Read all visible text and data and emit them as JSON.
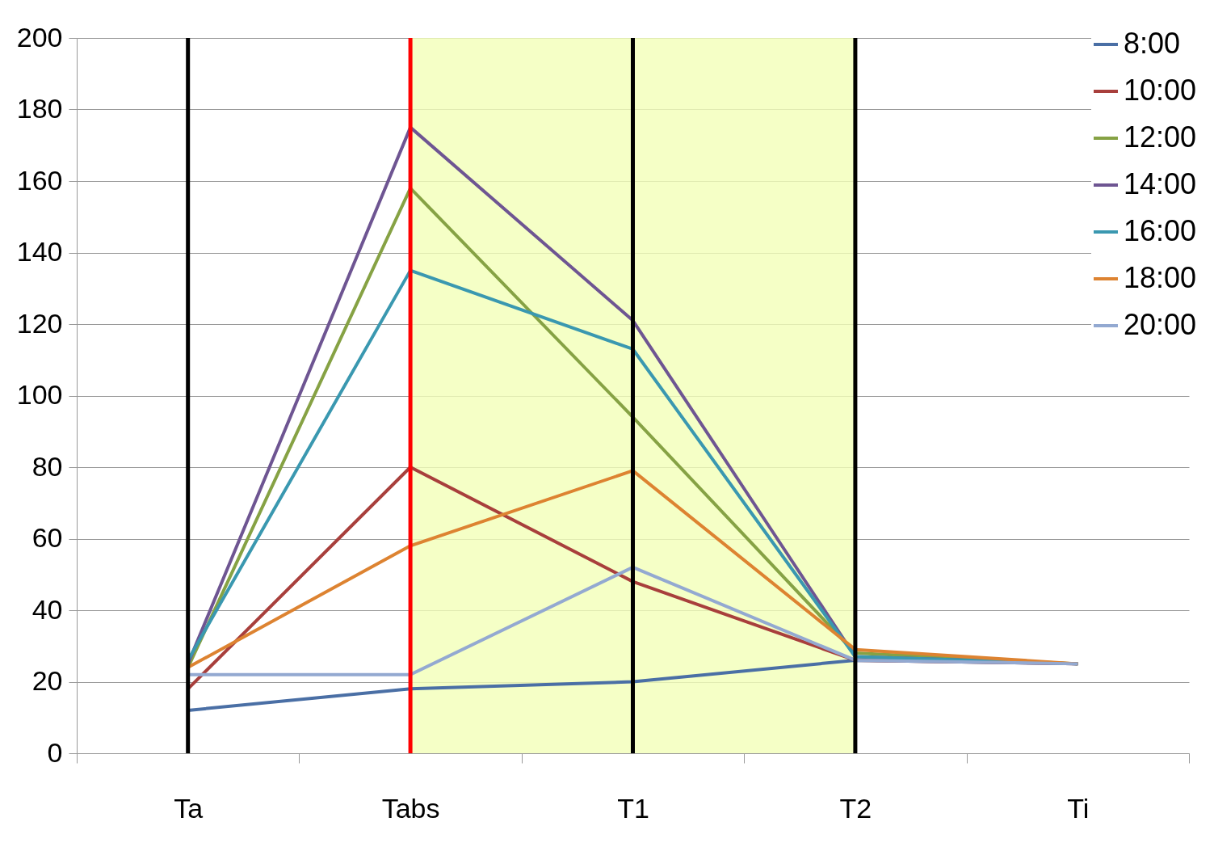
{
  "chart_data": {
    "type": "line",
    "categories": [
      "Ta",
      "Tabs",
      "T1",
      "T2",
      "Ti"
    ],
    "series": [
      {
        "name": "8:00",
        "color": "#4a6fa5",
        "values": [
          12,
          18,
          20,
          26,
          25
        ]
      },
      {
        "name": "10:00",
        "color": "#a83f3c",
        "values": [
          18,
          80,
          48,
          26,
          25
        ]
      },
      {
        "name": "12:00",
        "color": "#86a244",
        "values": [
          24,
          158,
          94,
          28,
          25
        ]
      },
      {
        "name": "14:00",
        "color": "#6e5592",
        "values": [
          25,
          175,
          121,
          27,
          25
        ]
      },
      {
        "name": "16:00",
        "color": "#3a98b0",
        "values": [
          26,
          135,
          113,
          27,
          25
        ]
      },
      {
        "name": "18:00",
        "color": "#dd8331",
        "values": [
          24,
          58,
          79,
          29,
          25
        ]
      },
      {
        "name": "20:00",
        "color": "#93a9d1",
        "values": [
          22,
          22,
          52,
          26,
          25
        ]
      }
    ],
    "ylim": [
      0,
      200
    ],
    "yticks": [
      0,
      20,
      40,
      60,
      80,
      100,
      120,
      140,
      160,
      180,
      200
    ],
    "grid": "y",
    "legend": "top right",
    "marker": "none",
    "line_style": "solid",
    "ref_lines": [
      {
        "axis": "x",
        "value": "Ta",
        "color": "#000000"
      },
      {
        "axis": "x",
        "value": "Tabs",
        "color": "#ff0000"
      },
      {
        "axis": "x",
        "value": "T1",
        "color": "#000000"
      },
      {
        "axis": "x",
        "value": "T2",
        "color": "#000000"
      }
    ],
    "bands": [
      {
        "axis": "x",
        "from": "Tabs",
        "to": "T2",
        "color": "#f2ffb8"
      }
    ]
  }
}
